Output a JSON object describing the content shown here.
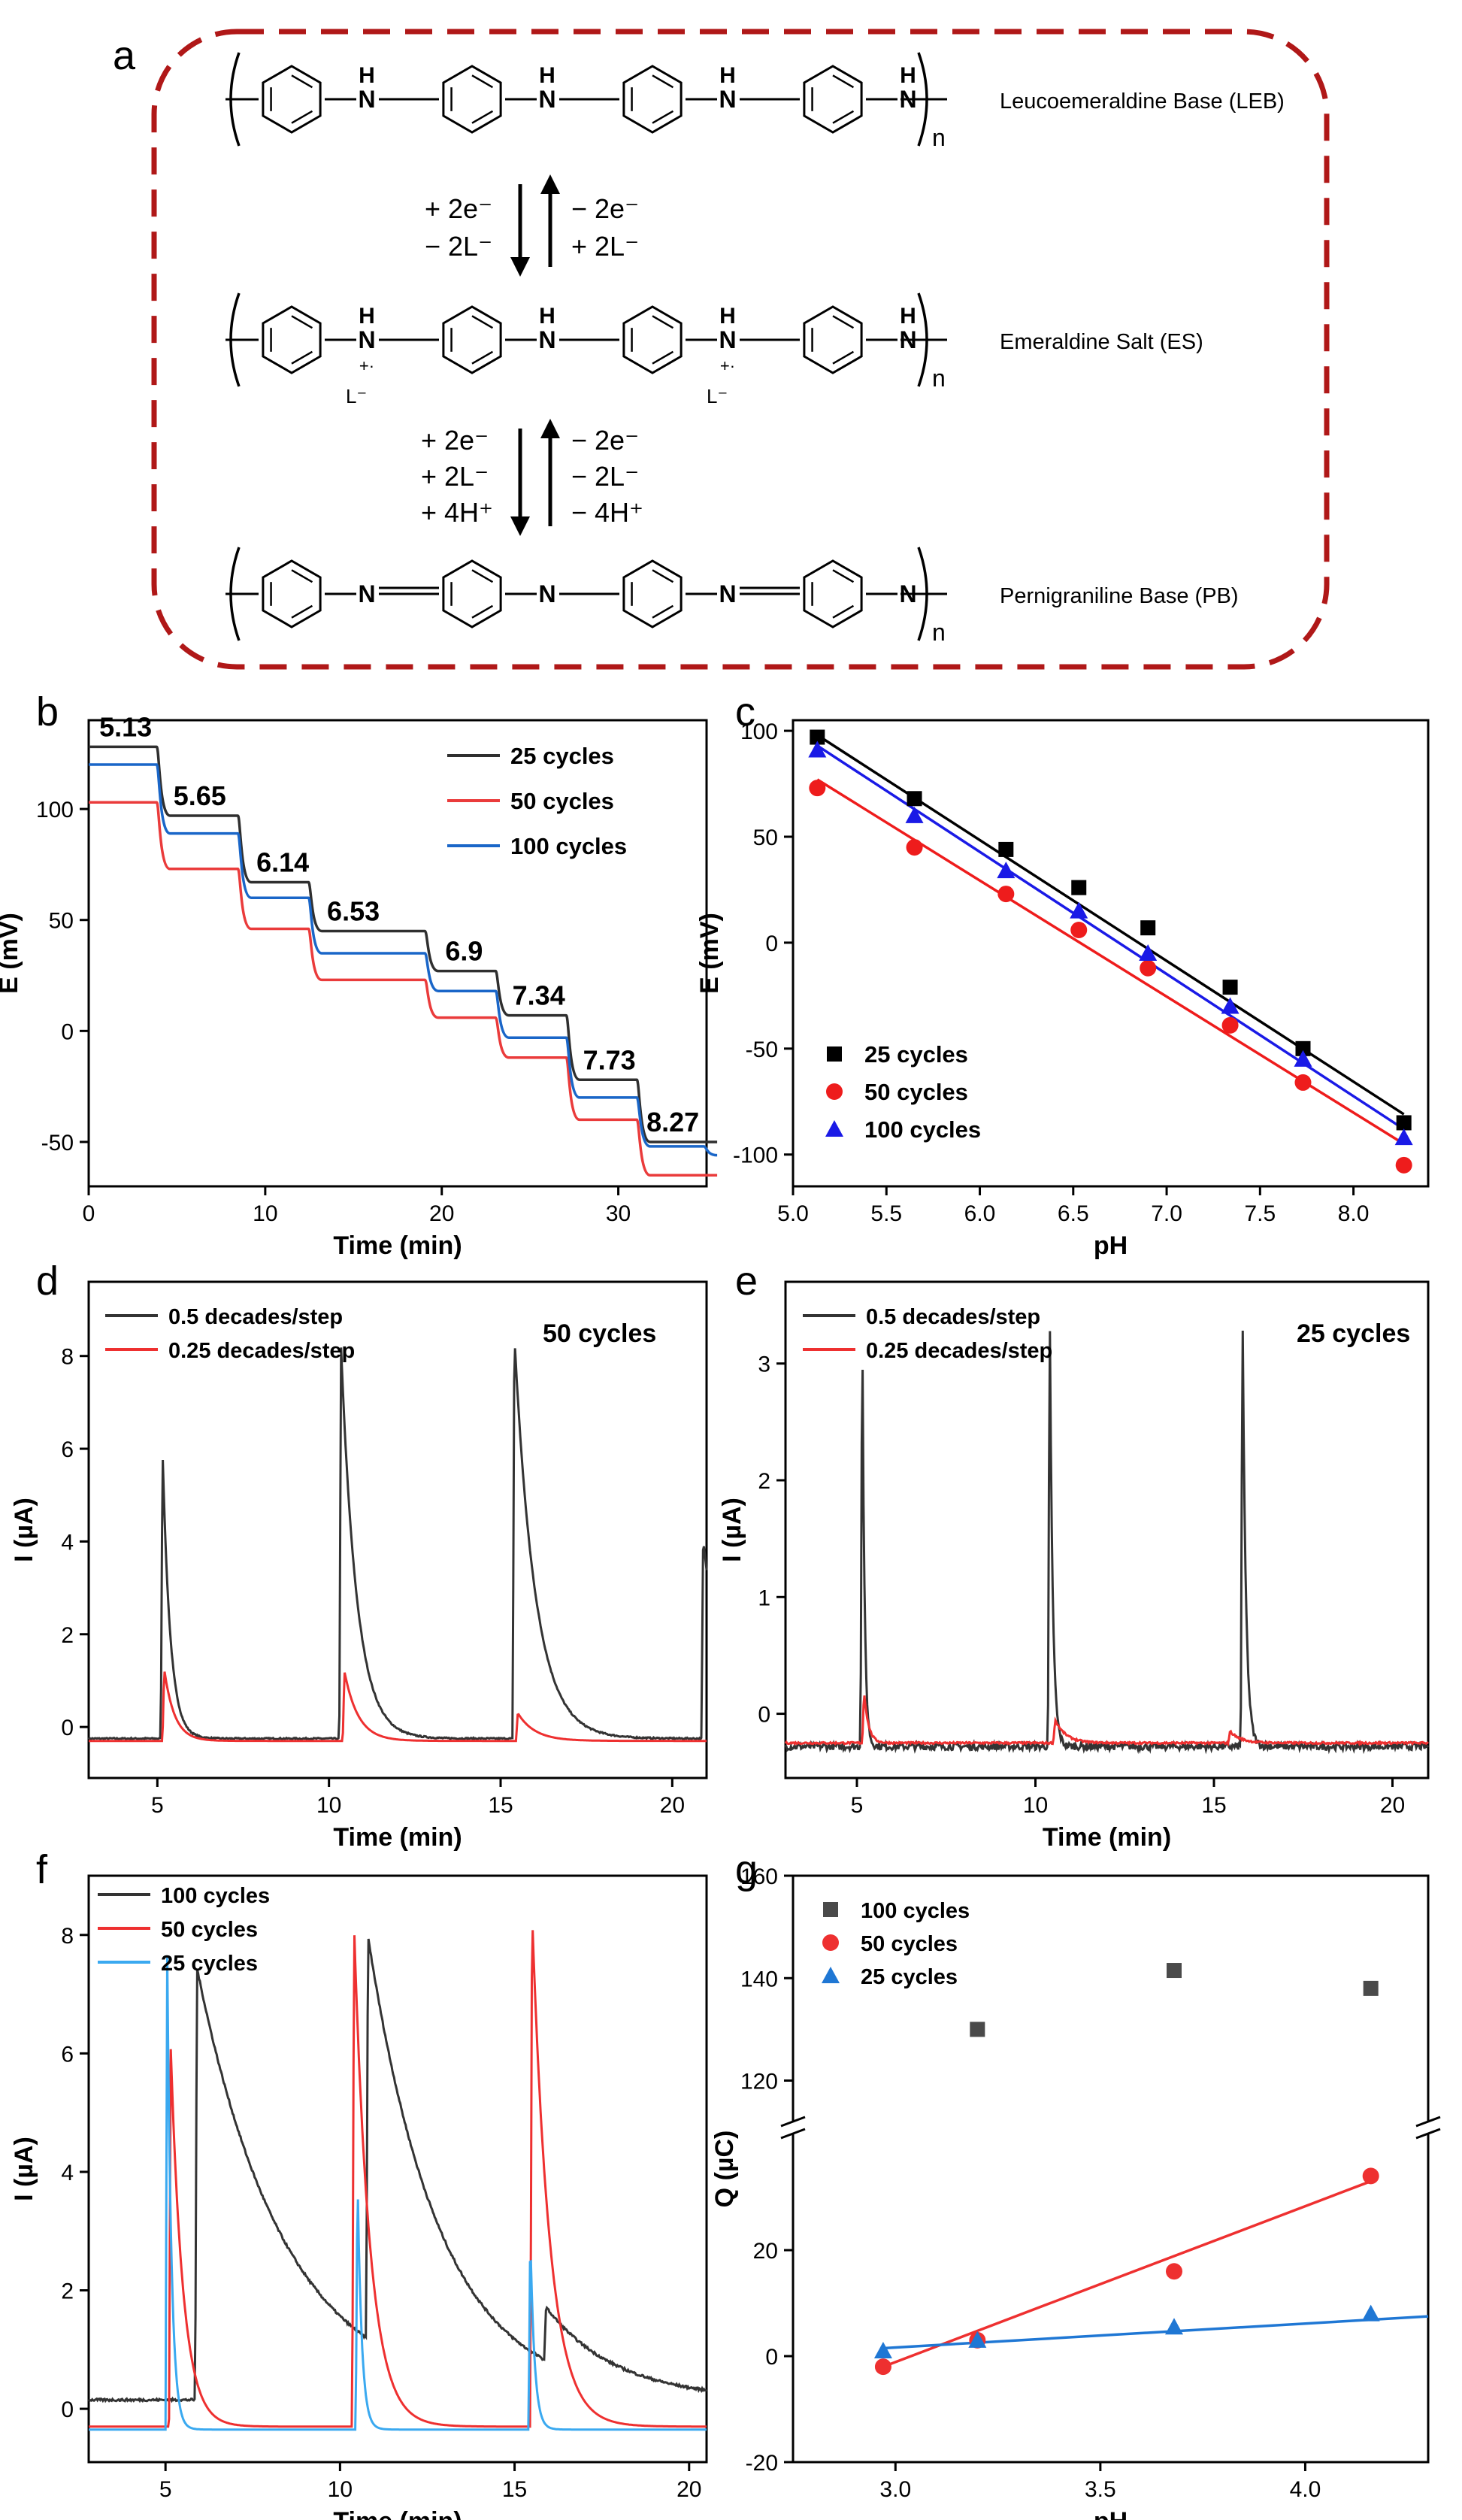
{
  "panel_labels": {
    "a": "a",
    "b": "b",
    "c": "c",
    "d": "d",
    "e": "e",
    "f": "f",
    "g": "g"
  },
  "scheme": {
    "structures": [
      {
        "name": "Leucoemeraldine Base (LEB)",
        "sub": "n",
        "atoms": [
          {
            "n": "N",
            "h": "H"
          },
          {
            "n": "N",
            "h": "H"
          },
          {
            "n": "N",
            "h": "H"
          },
          {
            "n": "N",
            "h": "H"
          }
        ]
      },
      {
        "name": "Emeraldine Salt (ES)",
        "sub": "n",
        "atoms": [
          {
            "n": "N",
            "h": "H",
            "plus": "+·",
            "anion": "L⁻"
          },
          {
            "n": "N",
            "h": "H"
          },
          {
            "n": "N",
            "h": "H",
            "plus": "+·",
            "anion": "L⁻"
          },
          {
            "n": "N",
            "h": "H"
          }
        ]
      },
      {
        "name": "Pernigraniline Base (PB)",
        "sub": "n",
        "atoms": [
          {
            "n": "N"
          },
          {
            "n": "N"
          },
          {
            "n": "N"
          },
          {
            "n": "N"
          }
        ]
      }
    ],
    "arrows1": {
      "down": [
        "+ 2e⁻",
        "− 2L⁻"
      ],
      "up": [
        "− 2e⁻",
        "+ 2L⁻"
      ]
    },
    "arrows2": {
      "down": [
        "+ 2e⁻",
        "+ 2L⁻",
        "+ 4H⁺"
      ],
      "up": [
        "− 2e⁻",
        "− 2L⁻",
        "− 4H⁺"
      ]
    }
  },
  "chart_data": [
    {
      "panel": "b",
      "type": "line",
      "title": "",
      "xlabel": "Time (min)",
      "ylabel": "E (mV)",
      "xlim": [
        0,
        35
      ],
      "ylim": [
        -70,
        140
      ],
      "xticks": [
        0,
        10,
        20,
        30
      ],
      "yticks": [
        -50,
        0,
        50,
        100
      ],
      "legend": "top-right",
      "series": [
        {
          "name": "25 cycles",
          "color": "#2f2f2f",
          "steps": [
            [
              0,
              128
            ],
            [
              4,
              97
            ],
            [
              8.6,
              67
            ],
            [
              12.6,
              45
            ],
            [
              19.2,
              27
            ],
            [
              23.2,
              7
            ],
            [
              27.2,
              -22
            ],
            [
              31.2,
              -50
            ],
            [
              35,
              -50
            ]
          ]
        },
        {
          "name": "50 cycles",
          "color": "#ea3b3b",
          "steps": [
            [
              0,
              103
            ],
            [
              4,
              73
            ],
            [
              8.6,
              46
            ],
            [
              12.6,
              23
            ],
            [
              19.2,
              6
            ],
            [
              23.2,
              -12
            ],
            [
              27.2,
              -40
            ],
            [
              31.2,
              -65
            ],
            [
              35,
              -65
            ]
          ]
        },
        {
          "name": "100 cycles",
          "color": "#1a66c8",
          "steps": [
            [
              0,
              120
            ],
            [
              4,
              89
            ],
            [
              8.6,
              60
            ],
            [
              12.6,
              35
            ],
            [
              19.2,
              18
            ],
            [
              23.2,
              -3
            ],
            [
              27.2,
              -30
            ],
            [
              31.2,
              -52
            ],
            [
              35,
              -56
            ]
          ]
        }
      ],
      "annotations": [
        {
          "text": "5.13",
          "x": 0.6,
          "y": 128
        },
        {
          "text": "5.65",
          "x": 4.8,
          "y": 97
        },
        {
          "text": "6.14",
          "x": 9.5,
          "y": 67
        },
        {
          "text": "6.53",
          "x": 13.5,
          "y": 45
        },
        {
          "text": "6.9",
          "x": 20.2,
          "y": 27
        },
        {
          "text": "7.34",
          "x": 24,
          "y": 7
        },
        {
          "text": "7.73",
          "x": 28,
          "y": -22
        },
        {
          "text": "8.27",
          "x": 31.6,
          "y": -50
        }
      ]
    },
    {
      "panel": "c",
      "type": "scatter",
      "title": "",
      "xlabel": "pH",
      "ylabel": "E (mV)",
      "xlim": [
        5.0,
        8.4
      ],
      "ylim": [
        -115,
        105
      ],
      "xticks": [
        5.0,
        5.5,
        6.0,
        6.5,
        7.0,
        7.5,
        8.0
      ],
      "yticks": [
        -100,
        -50,
        0,
        50,
        100
      ],
      "legend": "bottom-left",
      "x": [
        5.13,
        5.65,
        6.14,
        6.53,
        6.9,
        7.34,
        7.73,
        8.27
      ],
      "series": [
        {
          "name": "25 cycles",
          "color": "#000000",
          "marker": "square",
          "values": [
            97,
            68,
            44,
            26,
            7,
            -21,
            -50,
            -85
          ],
          "fit": [
            [
              5.13,
              98
            ],
            [
              8.27,
              -81
            ]
          ]
        },
        {
          "name": "50 cycles",
          "color": "#ee1c1c",
          "marker": "circle",
          "values": [
            73,
            45,
            23,
            6,
            -12,
            -39,
            -66,
            -105
          ],
          "fit": [
            [
              5.13,
              77
            ],
            [
              8.27,
              -95
            ]
          ]
        },
        {
          "name": "100 cycles",
          "color": "#1a1ae6",
          "marker": "triangle",
          "values": [
            91,
            60,
            34,
            15,
            -5,
            -30,
            -55,
            -92
          ],
          "fit": [
            [
              5.13,
              93
            ],
            [
              8.27,
              -88
            ]
          ]
        }
      ]
    },
    {
      "panel": "d",
      "type": "line",
      "title": "50 cycles",
      "xlabel": "Time (min)",
      "ylabel": "I (µA)",
      "xlim": [
        3,
        21
      ],
      "ylim": [
        -1.1,
        9.6
      ],
      "xticks": [
        5,
        10,
        15,
        20
      ],
      "yticks": [
        0,
        2,
        4,
        6,
        8
      ],
      "legend": "top-left",
      "kind": "transient",
      "series": [
        {
          "name": "0.5 decades/step",
          "color": "#333333",
          "base": -0.25,
          "noise": 0.015,
          "peaks": [
            [
              5.15,
              6.3,
              0.22
            ],
            [
              10.35,
              8.5,
              0.45
            ],
            [
              15.4,
              8.7,
              0.6
            ],
            [
              20.9,
              4.3,
              0.6
            ]
          ]
        },
        {
          "name": "0.25 decades/step",
          "color": "#ee3030",
          "base": -0.3,
          "noise": 0.0,
          "peaks": [
            [
              5.2,
              1.55,
              0.3
            ],
            [
              10.45,
              1.5,
              0.4
            ],
            [
              15.5,
              0.6,
              0.5
            ]
          ]
        }
      ]
    },
    {
      "panel": "e",
      "type": "line",
      "title": "25 cycles",
      "xlabel": "Time (min)",
      "ylabel": "I (µA)",
      "xlim": [
        3,
        21
      ],
      "ylim": [
        -0.55,
        3.7
      ],
      "xticks": [
        5,
        10,
        15,
        20
      ],
      "yticks": [
        0,
        1,
        2,
        3
      ],
      "legend": "top-left",
      "kind": "transient",
      "series": [
        {
          "name": "0.5 decades/step",
          "color": "#333333",
          "base": -0.28,
          "noise": 0.03,
          "peaks": [
            [
              5.15,
              3.8,
              0.06
            ],
            [
              10.4,
              3.8,
              0.08
            ],
            [
              15.8,
              3.8,
              0.09
            ]
          ]
        },
        {
          "name": "0.25 decades/step",
          "color": "#ee3030",
          "base": -0.25,
          "noise": 0.008,
          "peaks": [
            [
              5.2,
              0.45,
              0.12
            ],
            [
              10.55,
              0.2,
              0.3
            ],
            [
              15.45,
              0.1,
              0.3
            ]
          ]
        }
      ]
    },
    {
      "panel": "f",
      "type": "line",
      "title": "",
      "xlabel": "Time (min)",
      "ylabel": "I (µA)",
      "xlim": [
        2.8,
        20.5
      ],
      "ylim": [
        -0.9,
        9.0
      ],
      "xticks": [
        5,
        10,
        15,
        20
      ],
      "yticks": [
        0,
        2,
        4,
        6,
        8
      ],
      "legend": "top-left",
      "kind": "transient",
      "series": [
        {
          "name": "100 cycles",
          "color": "#333333",
          "base": 0.15,
          "noise": 0.02,
          "peaks": [
            [
              5.9,
              7.3,
              2.5
            ],
            [
              10.8,
              6.8,
              2.0
            ],
            [
              15.9,
              0.9,
              2.0
            ]
          ]
        },
        {
          "name": "50 cycles",
          "color": "#ee3030",
          "base": -0.3,
          "noise": 0.0,
          "peaks": [
            [
              5.15,
              6.4,
              0.35
            ],
            [
              10.4,
              8.5,
              0.45
            ],
            [
              15.5,
              8.7,
              0.5
            ]
          ]
        },
        {
          "name": "25 cycles",
          "color": "#3aa9f0",
          "base": -0.35,
          "noise": 0.0,
          "peaks": [
            [
              5.05,
              8.0,
              0.12
            ],
            [
              10.5,
              4.3,
              0.12
            ],
            [
              15.45,
              3.3,
              0.12
            ]
          ]
        }
      ]
    },
    {
      "panel": "g",
      "type": "scatter",
      "title": "",
      "xlabel": "pH",
      "ylabel": "Q (µC)",
      "xlim": [
        2.75,
        4.3
      ],
      "xticks": [
        3.0,
        3.5,
        4.0
      ],
      "yticks_lower": [
        -20,
        0,
        20
      ],
      "yticks_upper": [
        120,
        140,
        160
      ],
      "ylim_lower": [
        -20,
        42
      ],
      "ylim_upper": [
        112,
        160
      ],
      "axis_break": true,
      "legend": "top-left",
      "series": [
        {
          "name": "100 cycles",
          "color": "#4a4a4a",
          "marker": "square",
          "x": [
            3.2,
            3.68,
            4.16
          ],
          "values": [
            130,
            141.5,
            138
          ]
        },
        {
          "name": "50 cycles",
          "color": "#ee3030",
          "marker": "circle",
          "x": [
            2.97,
            3.2,
            3.68,
            4.16
          ],
          "values": [
            -2,
            3,
            16,
            34
          ],
          "fit": [
            [
              2.97,
              -2
            ],
            [
              4.16,
              33
            ]
          ]
        },
        {
          "name": "25 cycles",
          "color": "#1f77d4",
          "marker": "triangle",
          "x": [
            2.97,
            3.2,
            3.68,
            4.16
          ],
          "values": [
            1,
            3,
            5.5,
            8
          ],
          "fit": [
            [
              2.97,
              1.5
            ],
            [
              4.3,
              7.5
            ]
          ]
        }
      ]
    }
  ]
}
